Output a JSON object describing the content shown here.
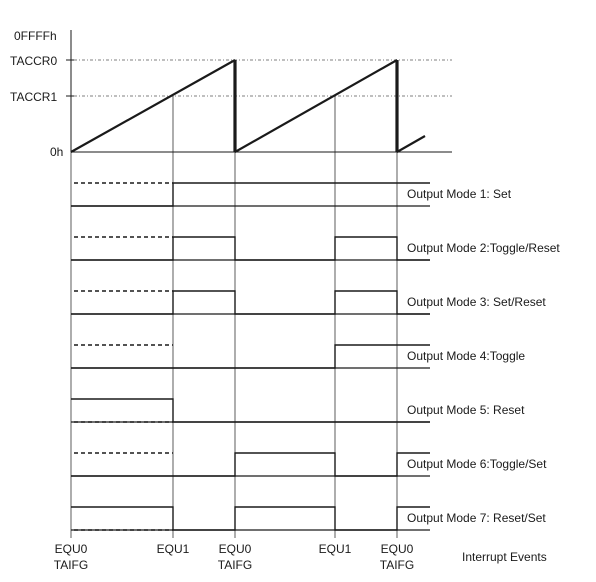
{
  "axis_labels": {
    "max": "0FFFFh",
    "ccr0": "TACCR0",
    "ccr1": "TACCR1",
    "zero": "0h"
  },
  "events": [
    {
      "line1": "EQU0",
      "line2": "TAIFG"
    },
    {
      "line1": "EQU1",
      "line2": ""
    },
    {
      "line1": "EQU0",
      "line2": "TAIFG"
    },
    {
      "line1": "EQU1",
      "line2": ""
    },
    {
      "line1": "EQU0",
      "line2": "TAIFG"
    }
  ],
  "events_caption": "Interrupt Events",
  "modes": [
    {
      "label": "Output Mode 1: Set",
      "levels": [
        0,
        1,
        1,
        1,
        1
      ]
    },
    {
      "label": "Output Mode 2:Toggle/Reset",
      "levels": [
        0,
        1,
        0,
        1,
        0
      ]
    },
    {
      "label": "Output Mode 3: Set/Reset",
      "levels": [
        0,
        1,
        0,
        1,
        0
      ]
    },
    {
      "label": "Output Mode 4:Toggle",
      "levels": [
        0,
        0,
        0,
        1,
        1
      ]
    },
    {
      "label": "Output Mode 5: Reset",
      "levels": [
        1,
        0,
        0,
        0,
        0
      ]
    },
    {
      "label": "Output Mode 6:Toggle/Set",
      "levels": [
        0,
        0,
        1,
        0,
        1
      ]
    },
    {
      "label": "Output Mode 7: Reset/Set",
      "levels": [
        1,
        0,
        1,
        0,
        1
      ]
    }
  ],
  "colors": {
    "ink": "#1a1a1a",
    "background": "#ffffff"
  }
}
